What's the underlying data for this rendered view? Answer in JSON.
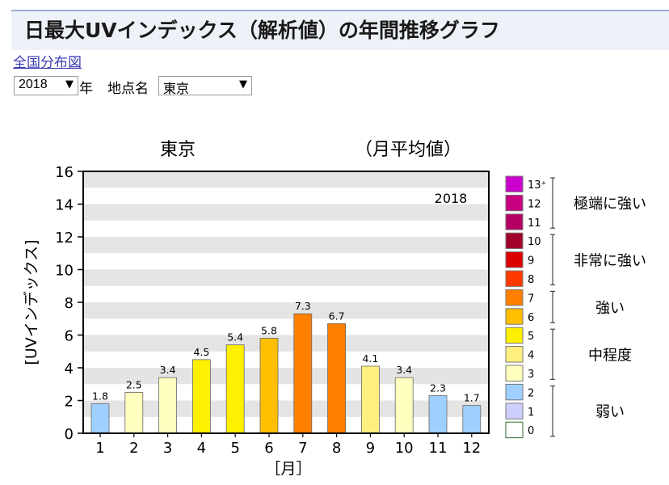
{
  "header": {
    "title": "日最大UVインデックス（解析値）の年間推移グラフ"
  },
  "links": {
    "nationwide_map": "全国分布図"
  },
  "controls": {
    "year": {
      "value": "2018",
      "suffix": "年"
    },
    "location": {
      "label": "地点名",
      "value": "東京"
    }
  },
  "chart_data": {
    "type": "bar",
    "title": "東京",
    "subtitle": "（月平均値）",
    "year_annotation": "2018",
    "xlabel": "［月］",
    "ylabel": "[UVインデックス]",
    "ylim": [
      0,
      16
    ],
    "yticks": [
      "0",
      "2",
      "4",
      "6",
      "8",
      "10",
      "12",
      "14",
      "16"
    ],
    "grid": "horizontal bands",
    "categories": [
      "1",
      "2",
      "3",
      "4",
      "5",
      "6",
      "7",
      "8",
      "9",
      "10",
      "11",
      "12"
    ],
    "values": [
      1.8,
      2.5,
      3.4,
      4.5,
      5.4,
      5.8,
      7.3,
      6.7,
      4.1,
      3.4,
      2.3,
      1.7
    ],
    "value_labels": [
      "1.8",
      "2.5",
      "3.4",
      "4.5",
      "5.4",
      "5.8",
      "7.3",
      "6.7",
      "4.1",
      "3.4",
      "2.3",
      "1.7"
    ],
    "legend": {
      "position": "right",
      "levels": [
        {
          "label": "13⁺",
          "color": "#cc00cc"
        },
        {
          "label": "12",
          "color": "#c6007e"
        },
        {
          "label": "11",
          "color": "#b40063"
        },
        {
          "label": "10",
          "color": "#a0002a"
        },
        {
          "label": "9",
          "color": "#dc0000"
        },
        {
          "label": "8",
          "color": "#ff3a00"
        },
        {
          "label": "7",
          "color": "#ff7f00"
        },
        {
          "label": "6",
          "color": "#ffbf00"
        },
        {
          "label": "5",
          "color": "#ffef00"
        },
        {
          "label": "4",
          "color": "#ffef7f"
        },
        {
          "label": "3",
          "color": "#ffffbf"
        },
        {
          "label": "2",
          "color": "#9fcfff"
        },
        {
          "label": "1",
          "color": "#cfcfff"
        },
        {
          "label": "0",
          "color": "#ffffff"
        }
      ],
      "categories": [
        {
          "label": "極端に強い",
          "from": 11,
          "to": 13
        },
        {
          "label": "非常に強い",
          "from": 8,
          "to": 10
        },
        {
          "label": "強い",
          "from": 6,
          "to": 7
        },
        {
          "label": "中程度",
          "from": 3,
          "to": 5
        },
        {
          "label": "弱い",
          "from": 0,
          "to": 2
        }
      ]
    }
  }
}
